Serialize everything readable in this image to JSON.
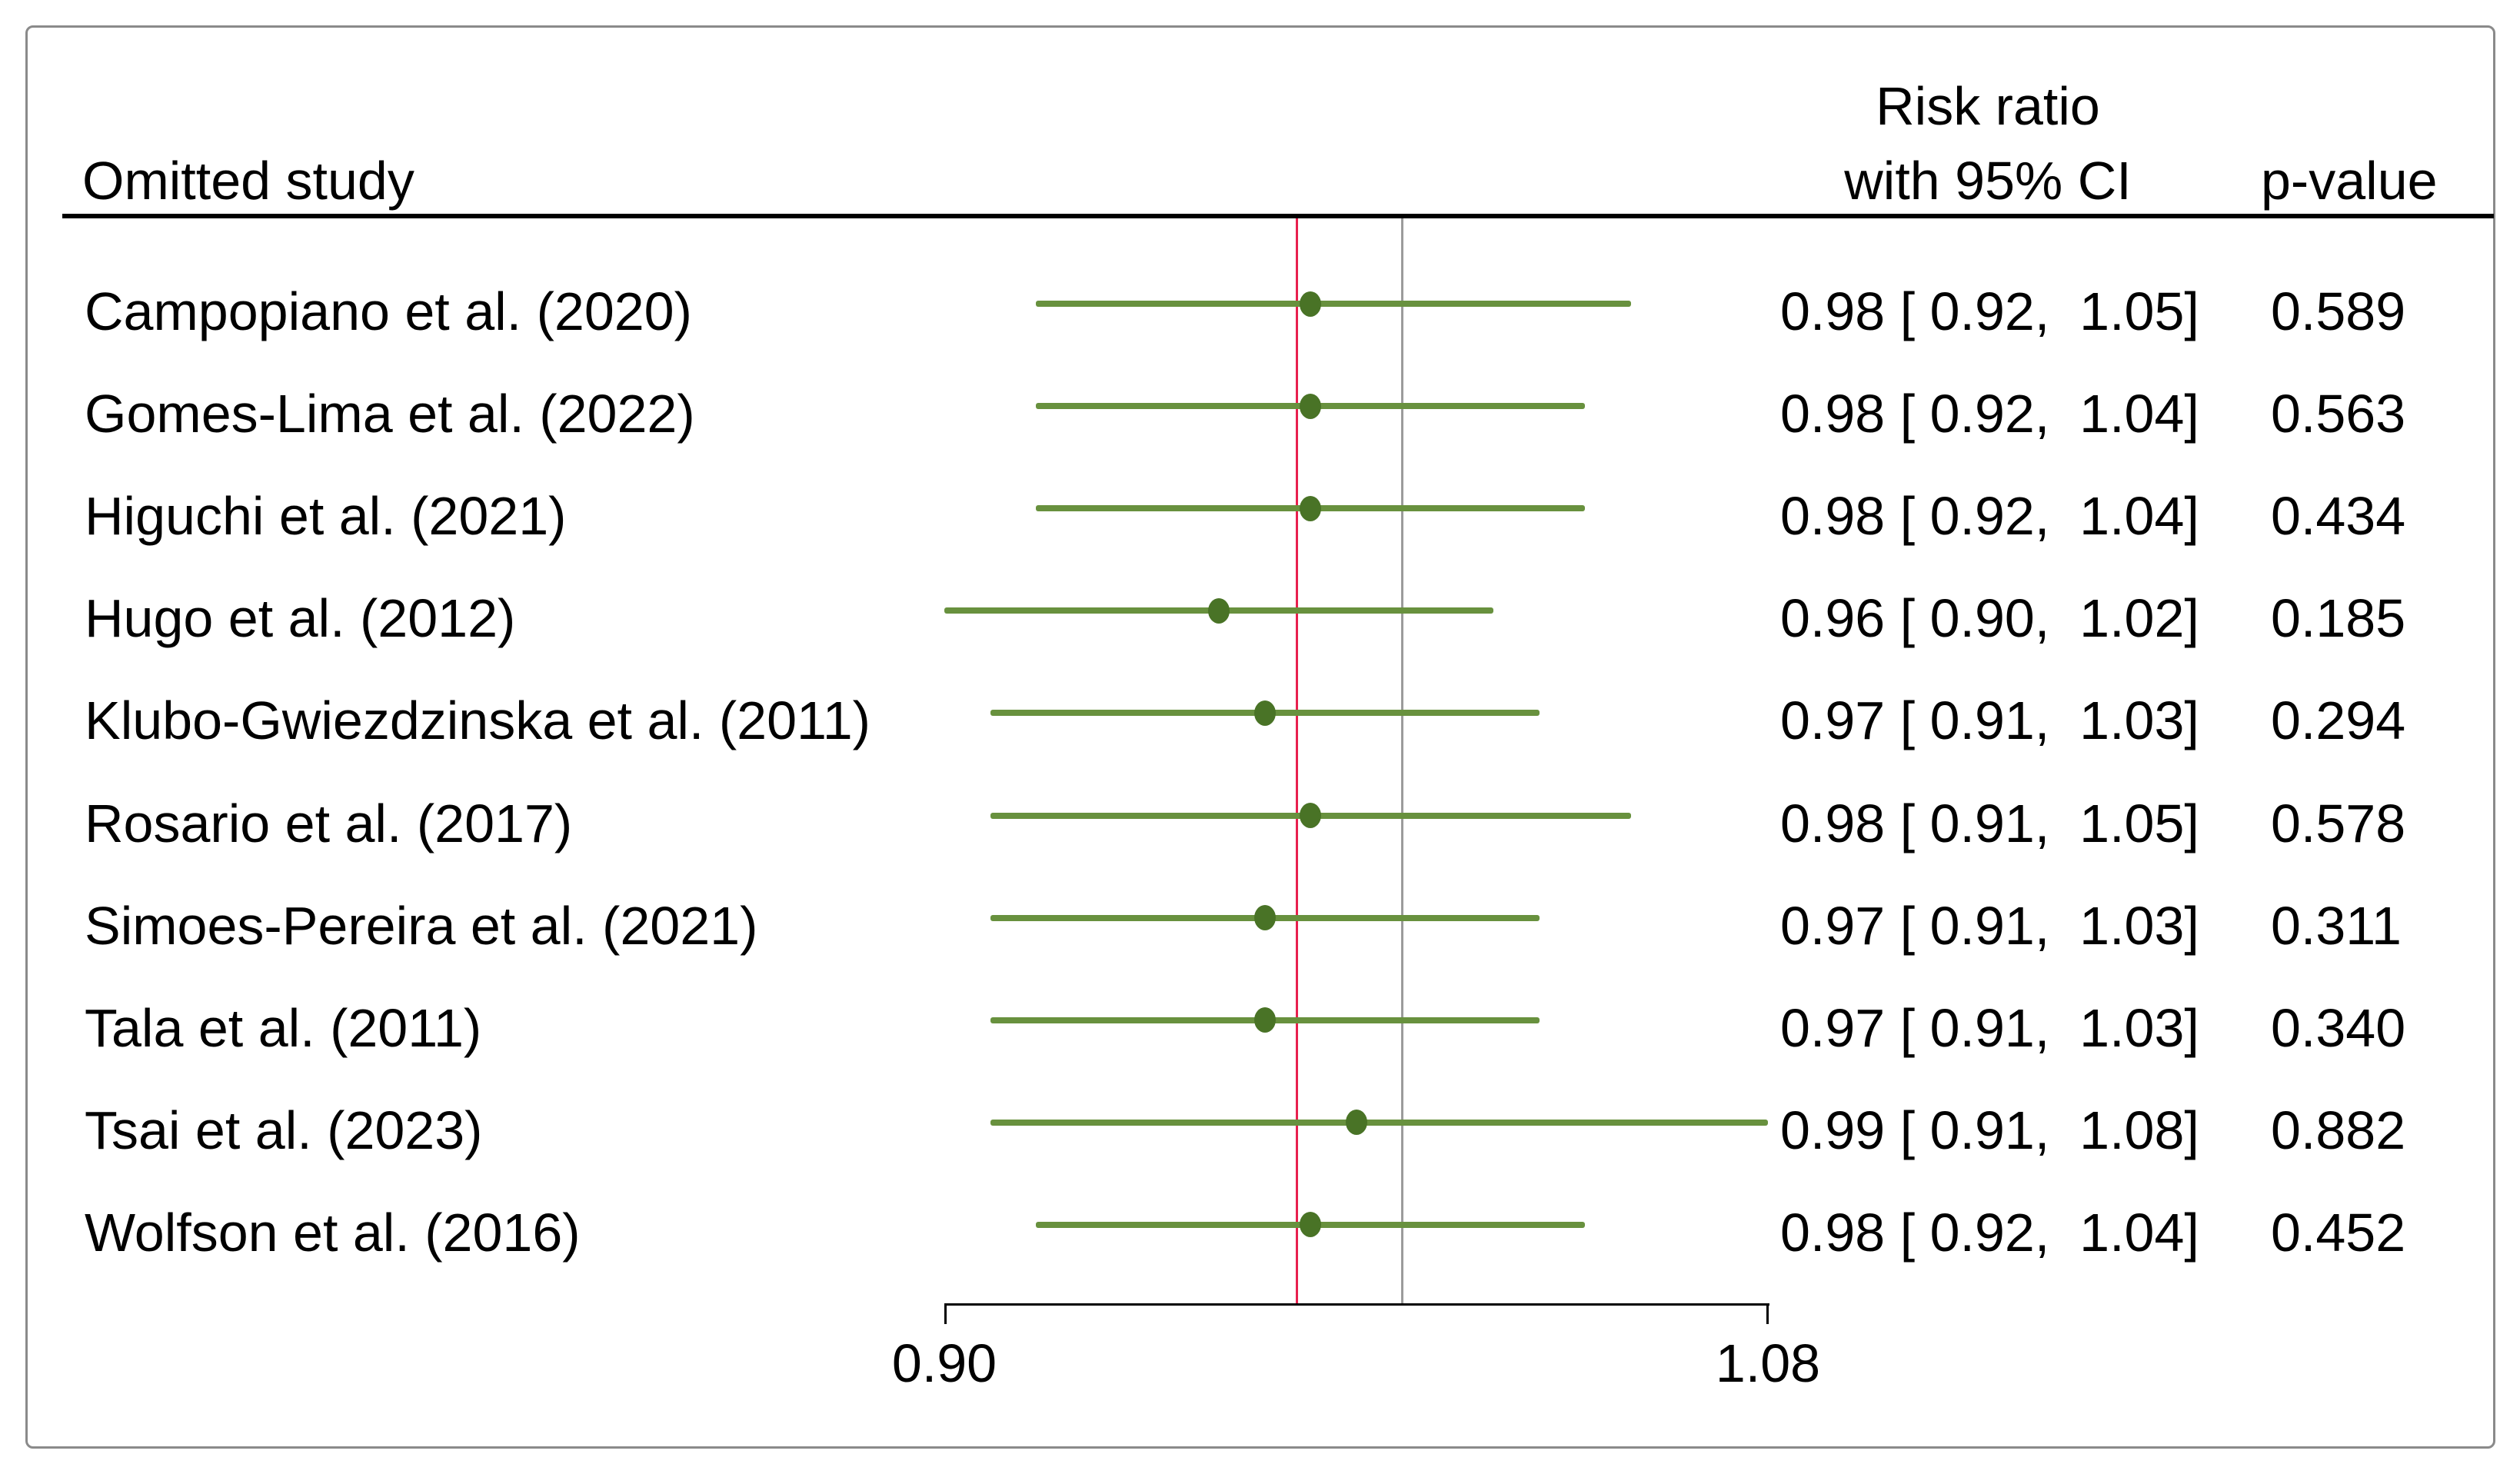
{
  "figure": {
    "header": {
      "omitted_study": "Omitted study",
      "effect_line1": "Risk ratio",
      "effect_line2": "with 95% CI",
      "p_value": "p-value"
    }
  },
  "chart_data": {
    "type": "forest",
    "subtype": "leave-one-out-sensitivity",
    "effect_measure": "Risk ratio",
    "x_axis": {
      "min": 0.9,
      "max": 1.08,
      "tick_values": [
        0.9,
        1.08
      ],
      "tick_labels": [
        "0.90",
        "1.08"
      ],
      "scale": "linear",
      "grid": false
    },
    "ref_lines": [
      {
        "name": "overall-estimate-line",
        "value": 0.977,
        "color": "#E8204E"
      },
      {
        "name": "null-line",
        "value": 1.0,
        "color": "#9B9B9B"
      }
    ],
    "colors": {
      "ci_line": "#68913E",
      "marker": "#497326",
      "text": "#000000",
      "frame_border": "#8A8A8A"
    },
    "studies": [
      {
        "label": "Campopiano et al. (2020)",
        "estimate": 0.98,
        "ci_low": 0.92,
        "ci_high": 1.05,
        "estimate_text": "0.98 [ 0.92,  1.05]",
        "p_value": "0.589"
      },
      {
        "label": "Gomes-Lima et al. (2022)",
        "estimate": 0.98,
        "ci_low": 0.92,
        "ci_high": 1.04,
        "estimate_text": "0.98 [ 0.92,  1.04]",
        "p_value": "0.563"
      },
      {
        "label": "Higuchi et al. (2021)",
        "estimate": 0.98,
        "ci_low": 0.92,
        "ci_high": 1.04,
        "estimate_text": "0.98 [ 0.92,  1.04]",
        "p_value": "0.434"
      },
      {
        "label": "Hugo et al. (2012)",
        "estimate": 0.96,
        "ci_low": 0.9,
        "ci_high": 1.02,
        "estimate_text": "0.96 [ 0.90,  1.02]",
        "p_value": "0.185"
      },
      {
        "label": "Klubo-Gwiezdzinska et al. (2011)",
        "estimate": 0.97,
        "ci_low": 0.91,
        "ci_high": 1.03,
        "estimate_text": "0.97 [ 0.91,  1.03]",
        "p_value": "0.294"
      },
      {
        "label": "Rosario et al. (2017)",
        "estimate": 0.98,
        "ci_low": 0.91,
        "ci_high": 1.05,
        "estimate_text": "0.98 [ 0.91,  1.05]",
        "p_value": "0.578"
      },
      {
        "label": "Simoes-Pereira et al. (2021)",
        "estimate": 0.97,
        "ci_low": 0.91,
        "ci_high": 1.03,
        "estimate_text": "0.97 [ 0.91,  1.03]",
        "p_value": "0.311"
      },
      {
        "label": "Tala et al. (2011)",
        "estimate": 0.97,
        "ci_low": 0.91,
        "ci_high": 1.03,
        "estimate_text": "0.97 [ 0.91,  1.03]",
        "p_value": "0.340"
      },
      {
        "label": "Tsai et al. (2023)",
        "estimate": 0.99,
        "ci_low": 0.91,
        "ci_high": 1.08,
        "estimate_text": "0.99 [ 0.91,  1.08]",
        "p_value": "0.882"
      },
      {
        "label": "Wolfson et al. (2016)",
        "estimate": 0.98,
        "ci_low": 0.92,
        "ci_high": 1.04,
        "estimate_text": "0.98 [ 0.92,  1.04]",
        "p_value": "0.452"
      }
    ]
  }
}
